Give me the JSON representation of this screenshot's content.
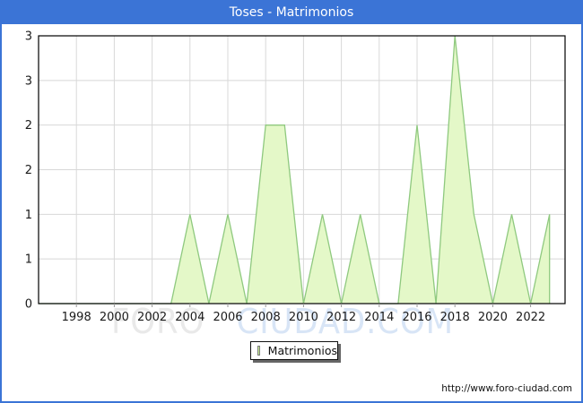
{
  "window": {
    "title": "Toses - Matrimonios"
  },
  "chart_data": {
    "type": "area",
    "title": "Toses - Matrimonios",
    "x": [
      1996,
      1997,
      1998,
      1999,
      2000,
      2001,
      2002,
      2003,
      2004,
      2005,
      2006,
      2007,
      2008,
      2009,
      2010,
      2011,
      2012,
      2013,
      2014,
      2015,
      2016,
      2017,
      2018,
      2019,
      2020,
      2021,
      2022,
      2023
    ],
    "values": [
      0,
      0,
      0,
      0,
      0,
      0,
      0,
      0,
      1,
      0,
      1,
      0,
      2,
      2,
      0,
      1,
      0,
      1,
      0,
      0,
      2,
      0,
      3,
      1,
      0,
      1,
      0,
      1
    ],
    "series_name": "Matrimonios",
    "xlabel": "",
    "ylabel": "",
    "ylim": [
      0,
      3
    ],
    "ytick_values": [
      0,
      0.5,
      1,
      1.5,
      2,
      2.5,
      3
    ],
    "ytick_labels": [
      "0",
      "1",
      "1",
      "2",
      "2",
      "3",
      "3"
    ],
    "xtick_values": [
      1998,
      2000,
      2002,
      2004,
      2006,
      2008,
      2010,
      2012,
      2014,
      2016,
      2018,
      2020,
      2022
    ],
    "xtick_labels": [
      "1998",
      "2000",
      "2002",
      "2004",
      "2006",
      "2008",
      "2010",
      "2012",
      "2014",
      "2016",
      "2018",
      "2020",
      "2022"
    ],
    "grid": true,
    "legend_position": "bottom-center"
  },
  "legend": {
    "label": "Matrimonios"
  },
  "watermark": {
    "part1": "FORO",
    "part2": "CIUDAD.COM"
  },
  "footer": {
    "url": "http://www.foro-ciudad.com"
  },
  "colors": {
    "frame_blue": "#3B74D6",
    "title_text": "#FFFFFF",
    "area_fill": "#E4F8C8",
    "area_stroke": "#8FC97F",
    "grid_line": "#D8D8D8",
    "axis_border": "#000000",
    "tick_text": "#1A1A1A",
    "legend_swatch_fill": "#C9F094",
    "legend_swatch_border": "#7B7B7B",
    "watermark_gray": "#E9E9E9",
    "watermark_blue": "#D8E5F6"
  }
}
